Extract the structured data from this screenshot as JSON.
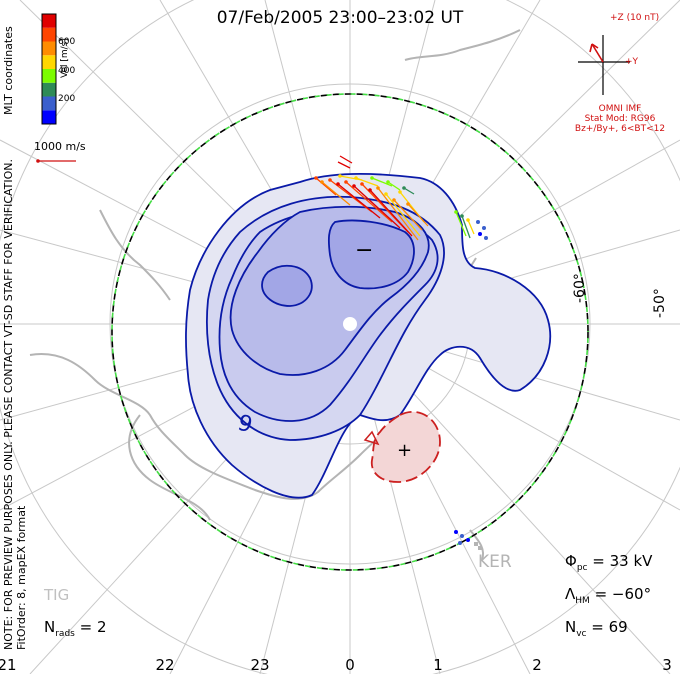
{
  "title": "07/Feb/2005 23:00–23:02 UT",
  "side_notes": {
    "line1": "NOTE: FOR PREVIEW PURPOSES ONLY. PLEASE CONTACT VT-SD STAFF FOR VERIFICATION.",
    "line2": "FitOrder: 8, mapEX format"
  },
  "coordinates_label": "MLT coordinates",
  "velocity_scale": {
    "axis_label": "Vel [m/s]",
    "ticks": [
      "600",
      "400",
      "200"
    ],
    "colors": [
      "#0000ff",
      "#3a5fcd",
      "#2e8b57",
      "#7cfc00",
      "#ffd700",
      "#ff8c00",
      "#ff4500",
      "#e00000"
    ]
  },
  "reference_vector": {
    "label": "1000 m/s"
  },
  "imf": {
    "z_label": "+Z (10 nT)",
    "y_label": "+Y",
    "omni": "OMNI IMF",
    "model_line1": "Stat Mod: RG96",
    "model_line2": "Bz+/By+, 6<BT<12"
  },
  "latitude_labels": [
    "-60°",
    "-50°"
  ],
  "mlt_labels": [
    "21",
    "22",
    "23",
    "0",
    "1",
    "2",
    "3"
  ],
  "contour_labels": {
    "minus": "−",
    "plus": "+",
    "nine": "9"
  },
  "stations": [
    "KER",
    "TIG"
  ],
  "stats": {
    "n_rads_sym": "N",
    "n_rads_sub": "rads",
    "n_rads_val": "= 2",
    "phi_sym": "Φ",
    "phi_sub": "pc",
    "phi_val": "= 33 kV",
    "lambda_sym": "Λ",
    "lambda_sub": "HM",
    "lambda_val": "= −60°",
    "nvc_sym": "N",
    "nvc_sub": "vc",
    "nvc_val": "= 69"
  },
  "colors": {
    "contour_neg": "#0a1aa8",
    "contour_pos": "#cc2020",
    "fill_light": "#e6e7f3",
    "fill_mid": "#c9cbee",
    "fill_dark": "#a2a6e6",
    "fill_pos": "#f3d6d6",
    "land": "#b4b4b4",
    "grid": "#c8c8c8",
    "boundary_green": "#44dd44"
  }
}
